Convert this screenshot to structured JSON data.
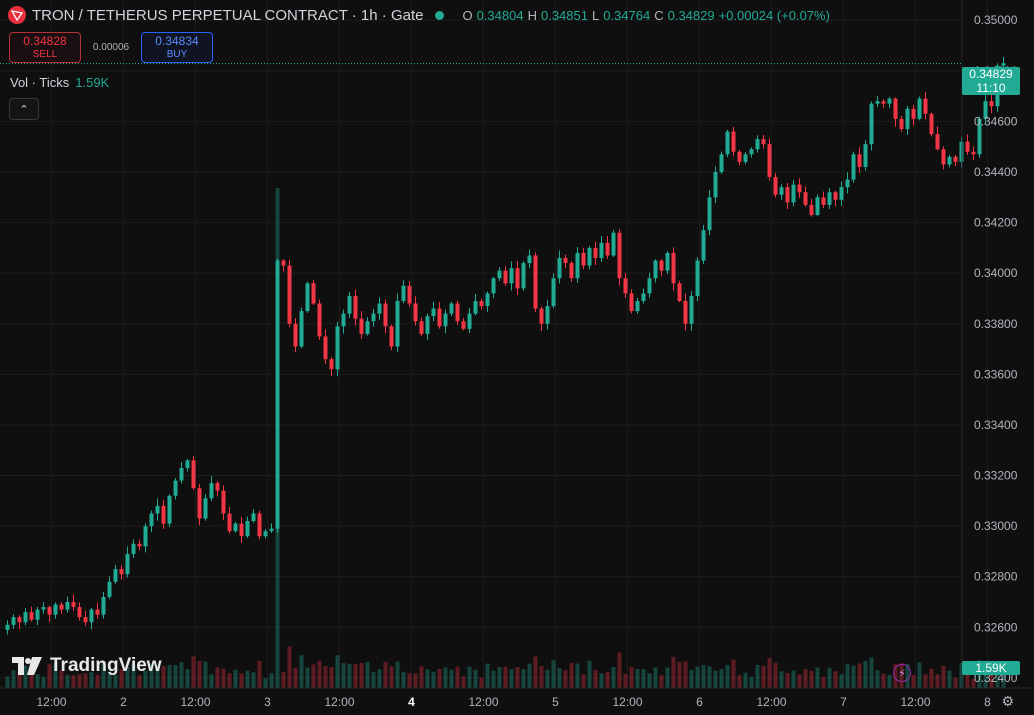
{
  "header": {
    "symbol": "TRON / TETHERUS PERPETUAL CONTRACT · 1h · Gate",
    "o_label": "O",
    "o": "0.34804",
    "h_label": "H",
    "h": "0.34851",
    "l_label": "L",
    "l": "0.34764",
    "c_label": "C",
    "c": "0.34829",
    "change": "+0.00024 (+0.07%)"
  },
  "trade": {
    "sell_price": "0.34828",
    "sell_label": "SELL",
    "spread": "0.00006",
    "buy_price": "0.34834",
    "buy_label": "BUY"
  },
  "volume": {
    "label": "Vol · Ticks",
    "value": "1.59K"
  },
  "badges": {
    "price": "0.34829",
    "countdown": "11:10",
    "volume": "1.59K"
  },
  "branding": {
    "logo_text": "TradingView"
  },
  "colors": {
    "up": "#22ab94",
    "down": "#f23645",
    "background": "#0f0f0f"
  },
  "chart_data": {
    "type": "candlestick",
    "ylim": [
      0.3236,
      0.3508
    ],
    "y_ticks": [
      0.324,
      0.326,
      0.328,
      0.33,
      0.332,
      0.334,
      0.336,
      0.338,
      0.34,
      0.342,
      0.344,
      0.346,
      0.348,
      0.35
    ],
    "y_tick_labels": [
      "0.32400",
      "0.32600",
      "0.32800",
      "0.33000",
      "0.33200",
      "0.33400",
      "0.33600",
      "0.33800",
      "0.34000",
      "0.34200",
      "0.34400",
      "0.34600",
      "0.34800",
      "0.35000"
    ],
    "x_labels": [
      {
        "label": "12:00",
        "bar": 4,
        "bold": false
      },
      {
        "label": "2",
        "bar": 16,
        "bold": false
      },
      {
        "label": "12:00",
        "bar": 28,
        "bold": false
      },
      {
        "label": "3",
        "bar": 40,
        "bold": false
      },
      {
        "label": "12:00",
        "bar": 52,
        "bold": false
      },
      {
        "label": "4",
        "bar": 64,
        "bold": true
      },
      {
        "label": "12:00",
        "bar": 76,
        "bold": false
      },
      {
        "label": "5",
        "bar": 88,
        "bold": false
      },
      {
        "label": "12:00",
        "bar": 100,
        "bold": false
      },
      {
        "label": "6",
        "bar": 112,
        "bold": false
      },
      {
        "label": "12:00",
        "bar": 124,
        "bold": false
      },
      {
        "label": "7",
        "bar": 136,
        "bold": false
      },
      {
        "label": "12:00",
        "bar": 148,
        "bold": false
      },
      {
        "label": "8",
        "bar": 160,
        "bold": false
      }
    ],
    "last_price": 0.34829,
    "closes": [
      0.3261,
      0.3264,
      0.3262,
      0.3266,
      0.3263,
      0.3267,
      0.3268,
      0.3265,
      0.3269,
      0.3267,
      0.327,
      0.3268,
      0.3264,
      0.3262,
      0.3267,
      0.3265,
      0.3272,
      0.3278,
      0.3283,
      0.3281,
      0.3289,
      0.3293,
      0.3292,
      0.33,
      0.3305,
      0.3308,
      0.3301,
      0.3312,
      0.3318,
      0.3323,
      0.3326,
      0.3315,
      0.3303,
      0.3311,
      0.3317,
      0.3314,
      0.3305,
      0.3298,
      0.3301,
      0.3296,
      0.3302,
      0.3305,
      0.3296,
      0.3298,
      0.3299,
      0.3405,
      0.3403,
      0.338,
      0.3371,
      0.3385,
      0.3396,
      0.3388,
      0.3375,
      0.3366,
      0.3362,
      0.3379,
      0.3384,
      0.3391,
      0.3382,
      0.3376,
      0.3381,
      0.3384,
      0.3388,
      0.3379,
      0.3371,
      0.3389,
      0.3395,
      0.3388,
      0.3381,
      0.3376,
      0.3383,
      0.3386,
      0.3379,
      0.3384,
      0.3388,
      0.3381,
      0.3378,
      0.3384,
      0.3389,
      0.3387,
      0.3392,
      0.3398,
      0.3401,
      0.3396,
      0.3402,
      0.3394,
      0.3404,
      0.3407,
      0.3386,
      0.338,
      0.3387,
      0.3398,
      0.3406,
      0.3404,
      0.3398,
      0.3408,
      0.3403,
      0.341,
      0.3406,
      0.3412,
      0.3407,
      0.3416,
      0.3398,
      0.3392,
      0.3385,
      0.3389,
      0.3392,
      0.3398,
      0.3405,
      0.3401,
      0.3408,
      0.3396,
      0.3389,
      0.338,
      0.3391,
      0.3405,
      0.3417,
      0.343,
      0.344,
      0.3447,
      0.3456,
      0.3448,
      0.3444,
      0.3447,
      0.3449,
      0.3453,
      0.3451,
      0.3438,
      0.3431,
      0.3434,
      0.3428,
      0.3435,
      0.3432,
      0.3427,
      0.3423,
      0.343,
      0.3427,
      0.3432,
      0.3429,
      0.3434,
      0.3437,
      0.3447,
      0.3442,
      0.3451,
      0.3467,
      0.3468,
      0.3467,
      0.3469,
      0.3461,
      0.3457,
      0.3465,
      0.3461,
      0.3469,
      0.3463,
      0.3455,
      0.3449,
      0.3443,
      0.3446,
      0.3444,
      0.3452,
      0.3448,
      0.3447,
      0.3461,
      0.3468,
      0.3466,
      0.3482,
      0.3483
    ]
  }
}
